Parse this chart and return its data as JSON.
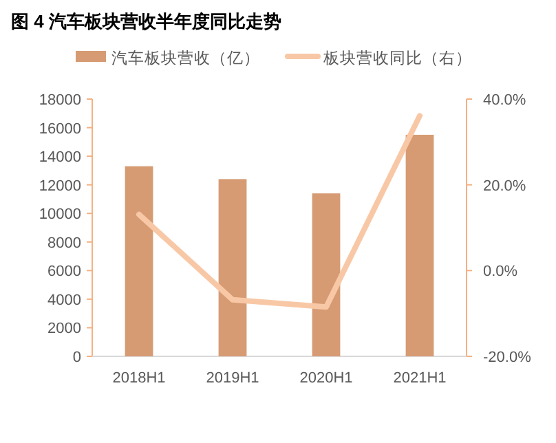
{
  "chart_data": {
    "type": "bar",
    "title": "图 4  汽车板块营收半年度同比走势",
    "categories": [
      "2018H1",
      "2019H1",
      "2020H1",
      "2021H1"
    ],
    "series": [
      {
        "name": "汽车板块营收（亿）",
        "color": "#d69b73",
        "values": [
          13300,
          12400,
          11400,
          15500
        ]
      },
      {
        "name": "板块营收同比（右）",
        "type": "line",
        "axis": "y2",
        "color": "#f8c8a6",
        "values": [
          13.1,
          -6.8,
          -8.5,
          36.1
        ]
      }
    ],
    "ylim": [
      0,
      18000
    ],
    "yticks": [
      0,
      2000,
      4000,
      6000,
      8000,
      10000,
      12000,
      14000,
      16000,
      18000
    ],
    "y2lim": [
      -20,
      40
    ],
    "y2ticks": [
      {
        "value": -20,
        "label": "-20.0%"
      },
      {
        "value": 0,
        "label": "0.0%"
      },
      {
        "value": 20,
        "label": "20.0%"
      },
      {
        "value": 40,
        "label": "40.0%"
      }
    ],
    "grid": false,
    "legend": "top",
    "marker": "none",
    "line_style": "solid"
  }
}
